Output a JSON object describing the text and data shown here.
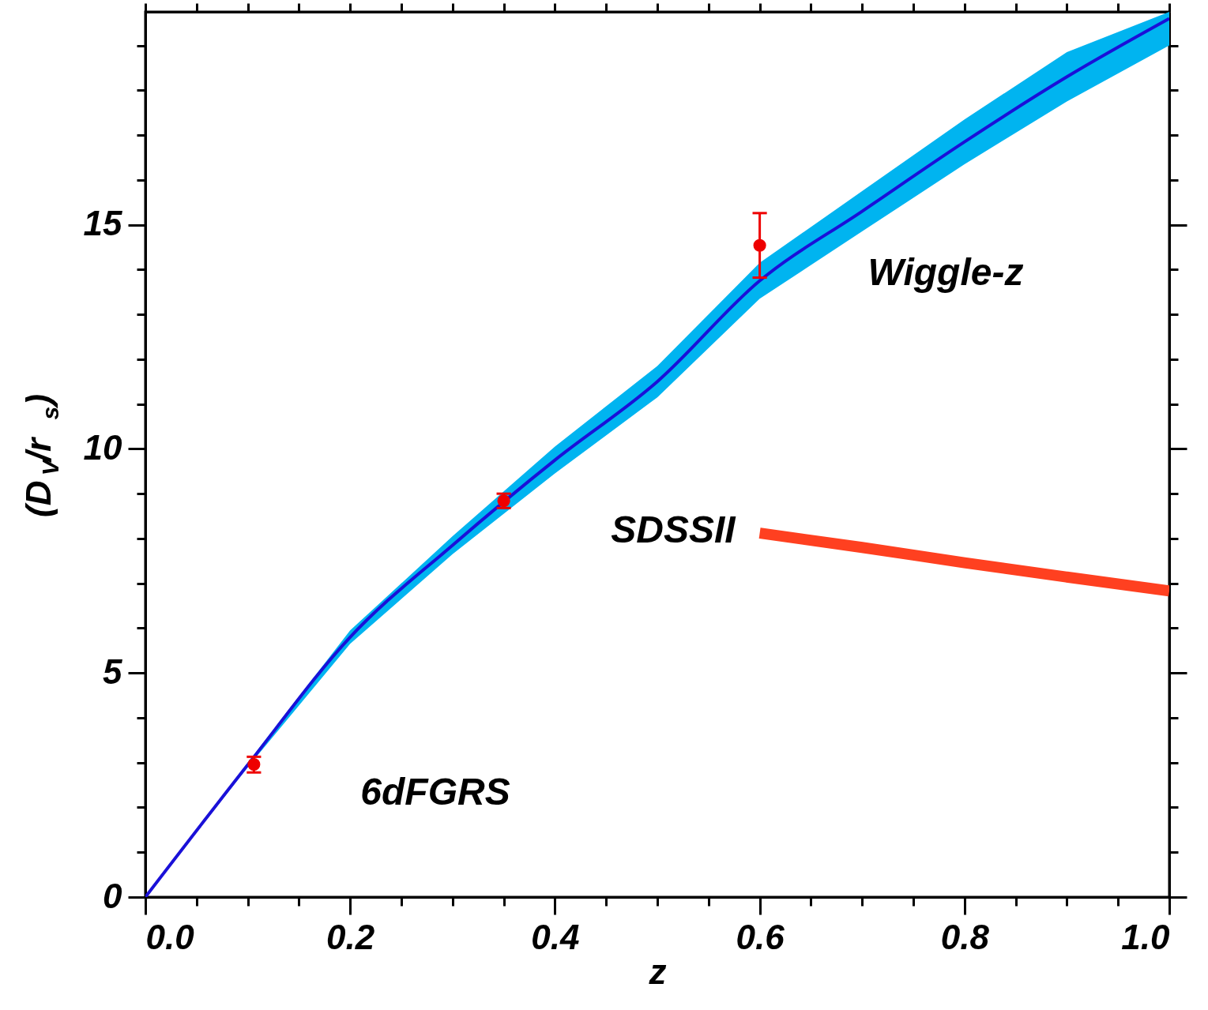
{
  "chart_data": {
    "type": "line",
    "xlabel": "z",
    "ylabel": "(D$_{V}$/r$_{s}$)",
    "xlim": [
      0,
      1
    ],
    "ylim": [
      0,
      19.75
    ],
    "xticks": [
      {
        "value": 0,
        "label": "0.0"
      },
      {
        "value": 0.05,
        "label": null
      },
      {
        "value": 0.1,
        "label": null
      },
      {
        "value": 0.15,
        "label": null
      },
      {
        "value": 0.2,
        "label": "0.2"
      },
      {
        "value": 0.25,
        "label": null
      },
      {
        "value": 0.3,
        "label": null
      },
      {
        "value": 0.35,
        "label": null
      },
      {
        "value": 0.4,
        "label": "0.4"
      },
      {
        "value": 0.45,
        "label": null
      },
      {
        "value": 0.5,
        "label": null
      },
      {
        "value": 0.55,
        "label": null
      },
      {
        "value": 0.6,
        "label": "0.6"
      },
      {
        "value": 0.65,
        "label": null
      },
      {
        "value": 0.7,
        "label": null
      },
      {
        "value": 0.75,
        "label": null
      },
      {
        "value": 0.8,
        "label": "0.8"
      },
      {
        "value": 0.85,
        "label": null
      },
      {
        "value": 0.9,
        "label": null
      },
      {
        "value": 0.95,
        "label": null
      },
      {
        "value": 1,
        "label": "1.0"
      }
    ],
    "yticks": [
      0,
      {
        "value": 1,
        "label": null
      },
      {
        "value": 2,
        "label": null
      },
      {
        "value": 3,
        "label": null
      },
      {
        "value": 4,
        "label": null
      },
      5,
      {
        "value": 6,
        "label": null
      },
      {
        "value": 7,
        "label": null
      },
      {
        "value": 8,
        "label": null
      },
      {
        "value": 9,
        "label": null
      },
      10,
      {
        "value": 11,
        "label": null
      },
      {
        "value": 12,
        "label": null
      },
      {
        "value": 13,
        "label": null
      },
      {
        "value": 14,
        "label": null
      },
      15,
      {
        "value": 16,
        "label": null
      },
      {
        "value": 17,
        "label": null
      },
      {
        "value": 18,
        "label": null
      },
      {
        "value": 19,
        "label": null
      }
    ],
    "grid": false,
    "line_style": "solid",
    "series": [
      {
        "color": "#1a10d8",
        "x": [
          0,
          0.1,
          0.2,
          0.3,
          0.4,
          0.5,
          0.6,
          0.7,
          0.8,
          0.9,
          1.0
        ],
        "values": [
          0,
          2.95,
          5.8,
          7.85,
          9.75,
          11.5,
          13.75,
          15.3,
          16.85,
          18.3,
          19.6
        ],
        "lower": [
          0,
          2.9,
          5.65,
          7.65,
          9.45,
          11.15,
          13.35,
          14.85,
          16.35,
          17.75,
          19.0
        ],
        "upper": [
          0,
          3.0,
          5.95,
          8.05,
          10.05,
          11.85,
          14.15,
          15.75,
          17.35,
          18.85,
          19.75
        ]
      },
      {
        "color": "#ff4020",
        "x": [
          0.6,
          0.7,
          0.8,
          0.9,
          1.0
        ],
        "values": [
          8.12,
          7.8,
          7.46,
          7.14,
          6.83
        ]
      },
      {
        "type": "scatter",
        "color": "#ee0000",
        "marker": "circle",
        "x": [
          0.106,
          0.35,
          0.6
        ],
        "values": [
          2.96,
          8.84,
          14.54
        ],
        "errors": [
          [
            2.78,
            3.13
          ],
          [
            8.68,
            9.0
          ],
          [
            13.82,
            15.26
          ]
        ]
      }
    ],
    "annotations": [
      "Wiggle-z",
      "SDSSII",
      "6dFGRS"
    ]
  }
}
